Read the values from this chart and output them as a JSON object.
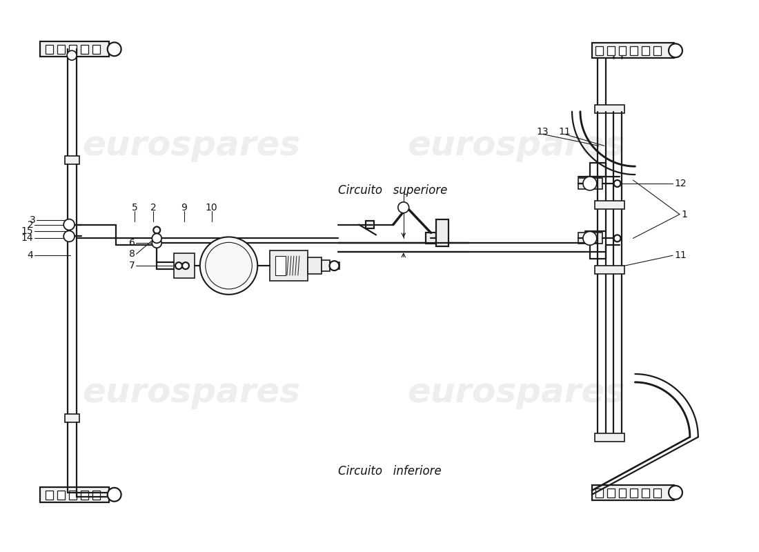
{
  "bg_color": "#ffffff",
  "line_color": "#1a1a1a",
  "text_color": "#111111",
  "watermark": "eurospares",
  "watermark_color": "#c8c8c8",
  "labels": {
    "circuito_superiore": "Circuito   superiore",
    "circuito_inferiore": "Circuito   inferiore"
  },
  "lw_pipe": 1.6,
  "lw_label": 0.8,
  "lw_bracket": 1.4
}
